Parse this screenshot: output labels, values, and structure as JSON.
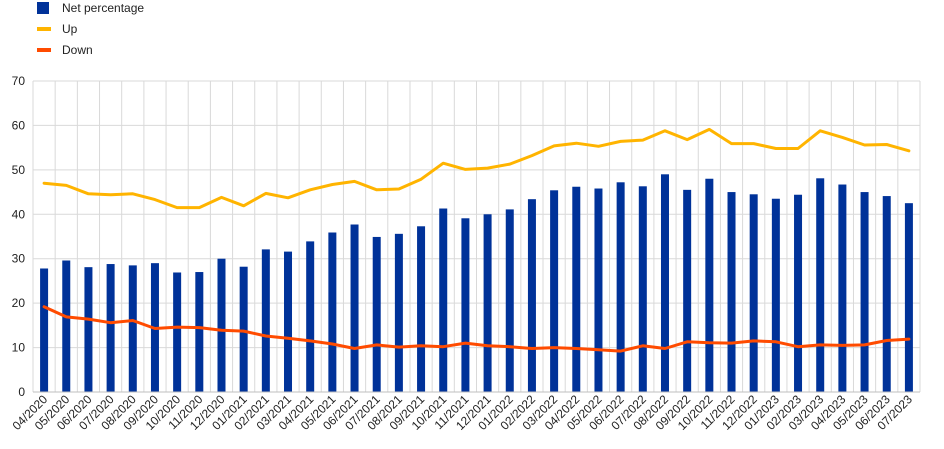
{
  "chart_data": {
    "type": "bar",
    "title": "",
    "xlabel": "",
    "ylabel": "",
    "ylim": [
      0,
      70
    ],
    "yticks": [
      0,
      10,
      20,
      30,
      40,
      50,
      60,
      70
    ],
    "grid": true,
    "legend_position": "top-left",
    "categories": [
      "04/2020",
      "05/2020",
      "06/2020",
      "07/2020",
      "08/2020",
      "09/2020",
      "10/2020",
      "11/2020",
      "12/2020",
      "01/2021",
      "02/2021",
      "03/2021",
      "04/2021",
      "05/2021",
      "06/2021",
      "07/2021",
      "08/2021",
      "09/2021",
      "10/2021",
      "11/2021",
      "12/2021",
      "01/2022",
      "02/2022",
      "03/2022",
      "04/2022",
      "05/2022",
      "06/2022",
      "07/2022",
      "08/2022",
      "09/2022",
      "10/2022",
      "11/2022",
      "12/2022",
      "01/2023",
      "02/2023",
      "03/2023",
      "04/2023",
      "05/2023",
      "06/2023",
      "07/2023"
    ],
    "series": [
      {
        "name": "Net percentage",
        "kind": "bar",
        "color": "#003299",
        "values": [
          27.8,
          29.6,
          28.1,
          28.8,
          28.5,
          29.0,
          26.9,
          27.0,
          30.0,
          28.2,
          32.1,
          31.6,
          33.9,
          35.9,
          37.7,
          34.9,
          35.6,
          37.3,
          41.3,
          39.1,
          40.0,
          41.1,
          43.4,
          45.4,
          46.2,
          45.8,
          47.2,
          46.3,
          49.0,
          45.5,
          48.0,
          45.0,
          44.5,
          43.5,
          44.4,
          48.1,
          46.7,
          45.0,
          44.1,
          42.5
        ]
      },
      {
        "name": "Up",
        "kind": "line",
        "color": "#FFB400",
        "values": [
          47.0,
          46.5,
          44.6,
          44.4,
          44.6,
          43.3,
          41.5,
          41.5,
          43.8,
          41.9,
          44.7,
          43.7,
          45.5,
          46.7,
          47.4,
          45.5,
          45.7,
          47.9,
          51.5,
          50.1,
          50.4,
          51.3,
          53.2,
          55.4,
          56.0,
          55.3,
          56.4,
          56.7,
          58.8,
          56.8,
          59.1,
          55.9,
          55.9,
          54.8,
          54.8,
          58.8,
          57.3,
          55.6,
          55.7,
          54.3
        ]
      },
      {
        "name": "Down",
        "kind": "line",
        "color": "#FF4B00",
        "values": [
          19.2,
          16.9,
          16.4,
          15.6,
          16.1,
          14.3,
          14.6,
          14.5,
          13.9,
          13.7,
          12.6,
          12.1,
          11.5,
          10.8,
          9.8,
          10.6,
          10.1,
          10.4,
          10.2,
          11.0,
          10.4,
          10.2,
          9.8,
          10.0,
          9.8,
          9.5,
          9.2,
          10.4,
          9.8,
          11.3,
          11.1,
          11.0,
          11.5,
          11.3,
          10.2,
          10.6,
          10.5,
          10.6,
          11.6,
          11.9
        ]
      }
    ]
  }
}
